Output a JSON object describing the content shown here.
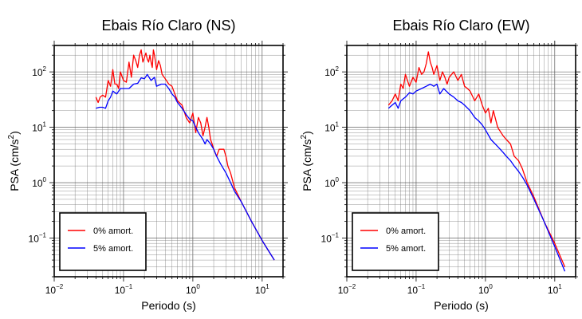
{
  "chart_data": [
    {
      "type": "line",
      "title": "Ebais Río Claro (NS)",
      "xlabel": "Periodo (s)",
      "ylabel_base": "PSA (cm/s",
      "ylabel_exp": "2",
      "ylabel_close": ")",
      "xscale": "log",
      "yscale": "log",
      "xlim": [
        0.01,
        20
      ],
      "ylim": [
        0.02,
        300
      ],
      "grid": true,
      "legend_position": "bottom-left",
      "x_ticks": [
        {
          "base": "10",
          "exp": "−2"
        },
        {
          "base": "10",
          "exp": "−1"
        },
        {
          "base": "10",
          "exp": "0"
        },
        {
          "base": "10",
          "exp": "1"
        }
      ],
      "y_ticks": [
        {
          "base": "10",
          "exp": "−1"
        },
        {
          "base": "10",
          "exp": "0"
        },
        {
          "base": "10",
          "exp": "1"
        },
        {
          "base": "10",
          "exp": "2"
        }
      ],
      "series": [
        {
          "name": "0% amort.",
          "color": "#ff0000",
          "x": [
            0.04,
            0.043,
            0.046,
            0.05,
            0.055,
            0.06,
            0.065,
            0.07,
            0.075,
            0.08,
            0.085,
            0.09,
            0.1,
            0.11,
            0.12,
            0.13,
            0.14,
            0.15,
            0.16,
            0.17,
            0.18,
            0.19,
            0.2,
            0.21,
            0.22,
            0.23,
            0.24,
            0.25,
            0.26,
            0.27,
            0.28,
            0.3,
            0.32,
            0.34,
            0.36,
            0.4,
            0.45,
            0.5,
            0.55,
            0.6,
            0.7,
            0.8,
            0.9,
            1.0,
            1.1,
            1.2,
            1.3,
            1.4,
            1.5,
            1.6,
            1.7,
            1.8,
            1.9,
            2.0,
            2.2,
            2.4,
            2.6,
            2.8,
            3.0,
            3.2,
            3.5,
            4.0,
            5.0,
            7.0,
            10.0,
            15.0
          ],
          "y": [
            35,
            28,
            35,
            38,
            35,
            70,
            55,
            110,
            60,
            60,
            50,
            100,
            70,
            65,
            150,
            80,
            200,
            160,
            120,
            200,
            250,
            150,
            180,
            220,
            170,
            150,
            200,
            150,
            120,
            250,
            200,
            110,
            160,
            130,
            90,
            75,
            60,
            55,
            40,
            30,
            25,
            15,
            12,
            18,
            8,
            15,
            12,
            7,
            10,
            15,
            10,
            6,
            5,
            4,
            3,
            4,
            4,
            4,
            3,
            2,
            1.5,
            0.8,
            0.45,
            0.2,
            0.09,
            0.04
          ]
        },
        {
          "name": "5% amort.",
          "color": "#0000ff",
          "x": [
            0.04,
            0.045,
            0.05,
            0.055,
            0.06,
            0.065,
            0.07,
            0.08,
            0.09,
            0.1,
            0.12,
            0.14,
            0.16,
            0.18,
            0.2,
            0.22,
            0.25,
            0.28,
            0.3,
            0.35,
            0.4,
            0.45,
            0.5,
            0.55,
            0.6,
            0.7,
            0.8,
            0.9,
            1.0,
            1.2,
            1.4,
            1.5,
            1.6,
            1.8,
            2.0,
            2.2,
            2.5,
            3.0,
            3.5,
            4.0,
            5.0,
            7.0,
            10.0,
            15.0
          ],
          "y": [
            22,
            23,
            23,
            22,
            30,
            35,
            45,
            40,
            50,
            50,
            50,
            60,
            62,
            78,
            75,
            90,
            70,
            80,
            55,
            60,
            60,
            50,
            40,
            35,
            28,
            22,
            17,
            14,
            13,
            8,
            6,
            5,
            6,
            5,
            4,
            3,
            2.2,
            1.5,
            1.0,
            0.7,
            0.45,
            0.2,
            0.09,
            0.04
          ]
        }
      ]
    },
    {
      "type": "line",
      "title": "Ebais Río Claro (EW)",
      "xlabel": "Periodo (s)",
      "ylabel_base": "PSA (cm/s",
      "ylabel_exp": "2",
      "ylabel_close": ")",
      "xscale": "log",
      "yscale": "log",
      "xlim": [
        0.01,
        20
      ],
      "ylim": [
        0.02,
        300
      ],
      "grid": true,
      "legend_position": "bottom-left",
      "x_ticks": [
        {
          "base": "10",
          "exp": "−2"
        },
        {
          "base": "10",
          "exp": "−1"
        },
        {
          "base": "10",
          "exp": "0"
        },
        {
          "base": "10",
          "exp": "1"
        }
      ],
      "y_ticks": [
        {
          "base": "10",
          "exp": "−1"
        },
        {
          "base": "10",
          "exp": "0"
        },
        {
          "base": "10",
          "exp": "1"
        },
        {
          "base": "10",
          "exp": "2"
        }
      ],
      "series": [
        {
          "name": "0% amort.",
          "color": "#ff0000",
          "x": [
            0.04,
            0.045,
            0.05,
            0.055,
            0.06,
            0.065,
            0.07,
            0.075,
            0.08,
            0.09,
            0.1,
            0.11,
            0.12,
            0.13,
            0.14,
            0.15,
            0.16,
            0.17,
            0.18,
            0.2,
            0.22,
            0.24,
            0.26,
            0.28,
            0.3,
            0.35,
            0.4,
            0.45,
            0.5,
            0.55,
            0.6,
            0.7,
            0.8,
            0.9,
            1.0,
            1.1,
            1.2,
            1.3,
            1.5,
            1.8,
            2.0,
            2.3,
            2.6,
            3.0,
            3.4,
            4.0,
            5.0,
            7.0,
            10.0,
            14.0
          ],
          "y": [
            25,
            30,
            40,
            30,
            60,
            50,
            90,
            70,
            55,
            80,
            65,
            120,
            90,
            100,
            140,
            230,
            150,
            120,
            90,
            130,
            70,
            100,
            80,
            60,
            80,
            100,
            70,
            90,
            55,
            50,
            45,
            30,
            40,
            25,
            18,
            22,
            12,
            20,
            10,
            7,
            6,
            5,
            3,
            2.5,
            1.8,
            1.0,
            0.55,
            0.2,
            0.08,
            0.03
          ]
        },
        {
          "name": "5% amort.",
          "color": "#0000ff",
          "x": [
            0.04,
            0.045,
            0.05,
            0.055,
            0.06,
            0.07,
            0.08,
            0.09,
            0.1,
            0.12,
            0.14,
            0.16,
            0.18,
            0.2,
            0.22,
            0.25,
            0.3,
            0.35,
            0.4,
            0.45,
            0.5,
            0.6,
            0.7,
            0.8,
            0.9,
            1.0,
            1.2,
            1.5,
            1.8,
            2.0,
            2.3,
            2.6,
            3.0,
            3.5,
            4.0,
            5.0,
            7.0,
            10.0,
            14.0
          ],
          "y": [
            22,
            25,
            28,
            22,
            30,
            35,
            42,
            40,
            45,
            50,
            55,
            60,
            55,
            60,
            40,
            50,
            40,
            35,
            30,
            28,
            25,
            20,
            15,
            13,
            11,
            9,
            6,
            4.5,
            3.5,
            3,
            2.5,
            2,
            1.6,
            1.2,
            0.9,
            0.5,
            0.2,
            0.07,
            0.025
          ]
        }
      ]
    }
  ]
}
